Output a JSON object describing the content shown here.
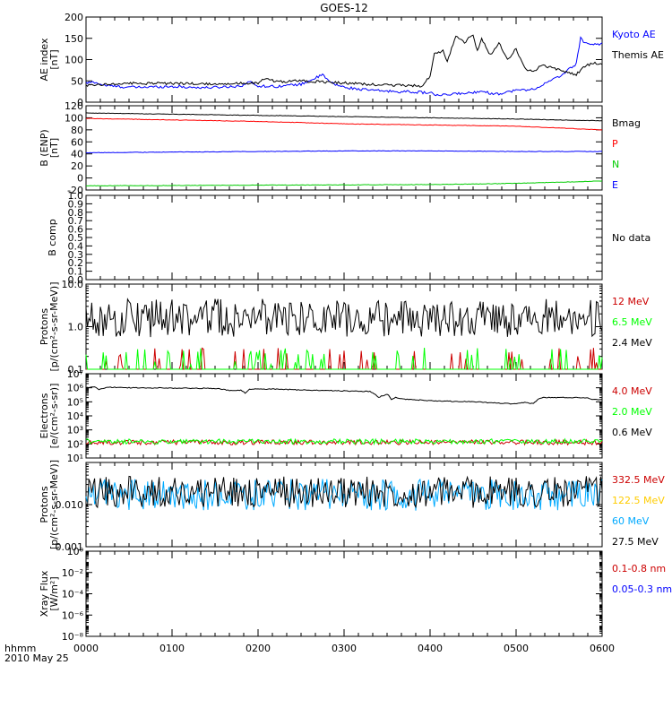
{
  "title": "GOES-12",
  "time_axis": {
    "ticks": [
      "0000",
      "0100",
      "0200",
      "0300",
      "0400",
      "0500",
      "0600"
    ],
    "unit_label": "hhmm",
    "date_label": "2010 May 25"
  },
  "colors": {
    "black": "#000000",
    "blue": "#0000ff",
    "red": "#ff0000",
    "green": "#00cc00",
    "darkred": "#cc0000",
    "lime": "#00ff00",
    "yellow": "#ffcc00",
    "cyan": "#00aaff"
  },
  "chart_data": [
    {
      "type": "line",
      "ylabel": [
        "AE index",
        "[nT]"
      ],
      "yscale": "linear",
      "ylim": [
        0,
        200
      ],
      "yticks": [
        "0",
        "50",
        "100",
        "150",
        "200"
      ],
      "x_range": [
        0,
        6
      ],
      "series": [
        {
          "name": "Kyoto AE",
          "color": "blue",
          "x": [
            0,
            0.1,
            0.2,
            0.4,
            0.6,
            0.8,
            1.0,
            1.2,
            1.4,
            1.6,
            1.8,
            1.9,
            2.0,
            2.2,
            2.5,
            2.75,
            2.85,
            3.0,
            3.2,
            3.4,
            3.6,
            3.8,
            4.0,
            4.1,
            4.3,
            4.5,
            4.6,
            4.7,
            4.8,
            5.0,
            5.2,
            5.3,
            5.5,
            5.6,
            5.7,
            5.75,
            5.8,
            5.9,
            6.0
          ],
          "y": [
            45,
            47,
            40,
            36,
            35,
            36,
            37,
            35,
            34,
            36,
            38,
            48,
            38,
            37,
            42,
            64,
            45,
            35,
            30,
            27,
            25,
            24,
            22,
            15,
            20,
            22,
            28,
            20,
            20,
            28,
            30,
            40,
            60,
            75,
            90,
            150,
            140,
            135,
            138
          ]
        },
        {
          "name": "Themis AE",
          "color": "black",
          "x": [
            0,
            0.2,
            0.5,
            1.0,
            1.5,
            2.0,
            2.1,
            2.2,
            2.5,
            3.0,
            3.5,
            3.9,
            4.0,
            4.05,
            4.15,
            4.2,
            4.3,
            4.4,
            4.5,
            4.55,
            4.6,
            4.7,
            4.8,
            4.9,
            5.0,
            5.1,
            5.2,
            5.3,
            5.5,
            5.7,
            5.8,
            5.9,
            6.0
          ],
          "y": [
            40,
            42,
            44,
            44,
            43,
            45,
            58,
            48,
            50,
            45,
            40,
            38,
            60,
            115,
            120,
            95,
            155,
            140,
            160,
            120,
            150,
            110,
            140,
            100,
            125,
            80,
            70,
            88,
            75,
            65,
            85,
            92,
            90
          ]
        }
      ]
    },
    {
      "type": "line",
      "ylabel": [
        "B (ENP)",
        "[nT]"
      ],
      "yscale": "linear",
      "ylim": [
        -20,
        120
      ],
      "yticks": [
        "-20",
        "0",
        "20",
        "40",
        "60",
        "80",
        "100",
        "120"
      ],
      "x_range": [
        0,
        6
      ],
      "series": [
        {
          "name": "Bmag",
          "color": "black",
          "x": [
            0,
            2,
            4,
            5,
            6
          ],
          "y": [
            108,
            104,
            100,
            98,
            95
          ]
        },
        {
          "name": "P",
          "color": "red",
          "x": [
            0,
            2,
            3,
            4,
            5,
            6
          ],
          "y": [
            99,
            94,
            90,
            88,
            86,
            80
          ]
        },
        {
          "name": "N",
          "color": "green",
          "x": [
            0,
            2,
            4,
            5,
            6
          ],
          "y": [
            -13,
            -12,
            -11,
            -9,
            -5
          ]
        },
        {
          "name": "E",
          "color": "blue",
          "x": [
            0,
            2,
            3,
            4,
            5,
            6
          ],
          "y": [
            42,
            44,
            45,
            45,
            44,
            44
          ]
        }
      ]
    },
    {
      "type": "line",
      "ylabel": [
        "B comp"
      ],
      "yscale": "linear",
      "ylim": [
        0,
        1
      ],
      "yticks": [
        "0.0",
        "0.1",
        "0.2",
        "0.3",
        "0.4",
        "0.5",
        "0.6",
        "0.7",
        "0.8",
        "0.9",
        "1.0"
      ],
      "x_range": [
        0,
        6
      ],
      "series": [],
      "annotation": "No data"
    },
    {
      "type": "line",
      "ylabel": [
        "Protons",
        "[p/(cm²-s-sr-MeV)]"
      ],
      "yscale": "log",
      "ylim": [
        0.1,
        10
      ],
      "yticks": [
        "0.1",
        "1.0",
        "10.0"
      ],
      "x_range": [
        0,
        6
      ],
      "series": [
        {
          "name": "12 MeV",
          "color": "darkred",
          "x": [
            0,
            6
          ],
          "y": [
            0.1,
            0.1
          ]
        },
        {
          "name": "6.5 MeV",
          "color": "lime",
          "x": [
            0,
            6
          ],
          "y": [
            0.15,
            0.15
          ]
        },
        {
          "name": "2.4 MeV",
          "color": "black",
          "x": [
            0,
            6
          ],
          "y": [
            1.6,
            1.6
          ]
        }
      ]
    },
    {
      "type": "line",
      "ylabel": [
        "Electrons",
        "[e/(cm²-s-sr)]"
      ],
      "yscale": "log",
      "ylim": [
        10,
        10000000
      ],
      "yticks": [
        "10¹",
        "10²",
        "10³",
        "10⁴",
        "10⁵",
        "10⁶",
        "10⁷"
      ],
      "x_range": [
        0,
        6
      ],
      "series": [
        {
          "name": "4.0 MeV",
          "color": "darkred",
          "x": [
            0,
            6
          ],
          "y": [
            130,
            130
          ]
        },
        {
          "name": "2.0 MeV",
          "color": "lime",
          "x": [
            0,
            6
          ],
          "y": [
            150,
            150
          ]
        },
        {
          "name": "0.6 MeV",
          "color": "black",
          "x": [
            0,
            0.1,
            0.15,
            0.25,
            0.5,
            1.0,
            1.5,
            1.7,
            1.8,
            1.85,
            1.9,
            2.0,
            2.5,
            3.0,
            3.3,
            3.4,
            3.5,
            3.55,
            3.6,
            3.65,
            4.0,
            4.5,
            4.8,
            5.0,
            5.1,
            5.2,
            5.3,
            5.4,
            5.8,
            5.9,
            6.0
          ],
          "y": [
            1000000,
            1200000,
            700000,
            1100000,
            1000000,
            950000,
            900000,
            600000,
            700000,
            400000,
            800000,
            850000,
            700000,
            600000,
            550000,
            200000,
            350000,
            150000,
            200000,
            160000,
            120000,
            100000,
            80000,
            70000,
            90000,
            75000,
            200000,
            200000,
            200000,
            150000,
            150000
          ]
        }
      ]
    },
    {
      "type": "line",
      "ylabel": [
        "Protons",
        "[p/(cm²-s-sr-MeV)]"
      ],
      "yscale": "log",
      "ylim": [
        0.001,
        0.1
      ],
      "yticks": [
        "0.001",
        "0.010"
      ],
      "x_range": [
        0,
        6
      ],
      "series": [
        {
          "name": "332.5 MeV",
          "color": "darkred",
          "x": [],
          "y": []
        },
        {
          "name": "122.5 MeV",
          "color": "yellow",
          "x": [],
          "y": []
        },
        {
          "name": "60 MeV",
          "color": "cyan",
          "x": [
            0,
            6
          ],
          "y": [
            0.017,
            0.017
          ]
        },
        {
          "name": "27.5 MeV",
          "color": "black",
          "x": [
            0,
            6
          ],
          "y": [
            0.02,
            0.02
          ]
        }
      ]
    },
    {
      "type": "line",
      "ylabel": [
        "Xray Flux",
        "[W/m²]"
      ],
      "yscale": "log",
      "ylim": [
        1e-08,
        1
      ],
      "yticks": [
        "10⁻⁸",
        "10⁻⁶",
        "10⁻⁴",
        "10⁻²",
        "10⁰"
      ],
      "x_range": [
        0,
        6
      ],
      "series": [
        {
          "name": "0.1-0.8 nm",
          "color": "darkred",
          "x": [],
          "y": []
        },
        {
          "name": "0.05-0.3 nm",
          "color": "blue",
          "x": [],
          "y": []
        }
      ]
    }
  ]
}
